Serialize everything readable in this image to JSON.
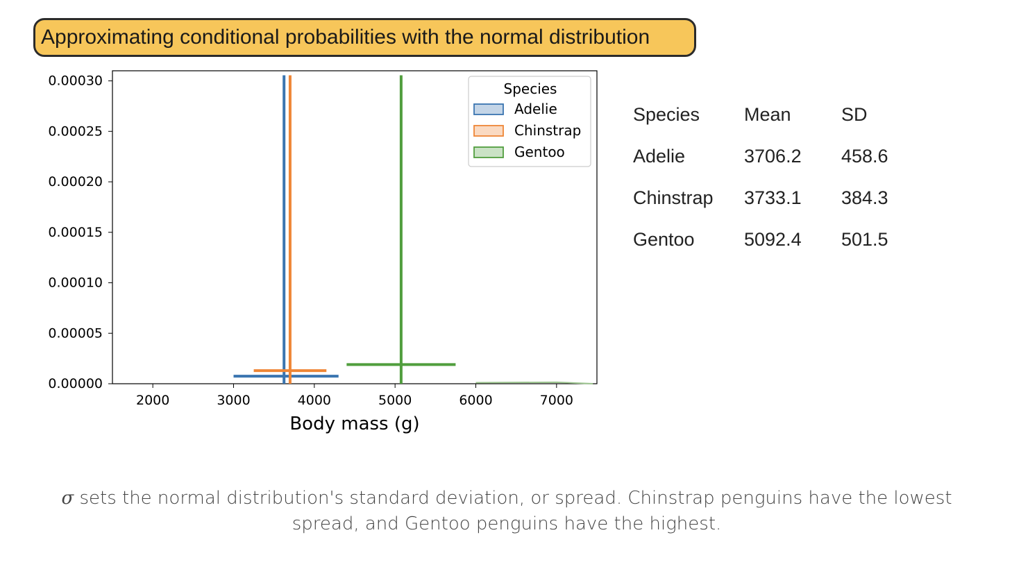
{
  "title": "Approximating conditional probabilities with the normal distribution",
  "chart_data": {
    "type": "histogram",
    "xlabel": "Body mass (g)",
    "ylabel": "",
    "xlim": [
      1500,
      7500
    ],
    "ylim": [
      0,
      0.00031
    ],
    "xticks": [
      2000,
      3000,
      4000,
      5000,
      6000,
      7000
    ],
    "yticks": [
      0,
      5e-05,
      0.0001,
      0.00015,
      0.0002,
      0.00025,
      0.0003
    ],
    "ytick_labels": [
      "0.00000",
      "0.00005",
      "0.00010",
      "0.00015",
      "0.00020",
      "0.00025",
      "0.00030"
    ],
    "legend": {
      "title": "Species",
      "placement": "top-right"
    },
    "grid": false,
    "series": [
      {
        "name": "Adelie",
        "color": "#3a75b0",
        "vline_x": 3625,
        "hline_y": 7.5e-06,
        "hline_x": [
          3000,
          4300
        ]
      },
      {
        "name": "Chinstrap",
        "color": "#ef8636",
        "vline_x": 3700,
        "hline_y": 1.3e-05,
        "hline_x": [
          3250,
          4150
        ]
      },
      {
        "name": "Gentoo",
        "color": "#519e3e",
        "vline_x": 5075,
        "hline_y": 1.9e-05,
        "hline_x": [
          4400,
          5750
        ]
      }
    ],
    "tail": {
      "x": [
        6000,
        7000,
        7450
      ],
      "y": [
        1e-06,
        1.5e-06,
        0.0
      ]
    }
  },
  "table": {
    "headers": [
      "Species",
      "Mean",
      "SD"
    ],
    "rows": [
      [
        "Adelie",
        "3706.2",
        "458.6"
      ],
      [
        "Chinstrap",
        "3733.1",
        "384.3"
      ],
      [
        "Gentoo",
        "5092.4",
        "501.5"
      ]
    ]
  },
  "caption": {
    "symbol": "σ",
    "line1": " sets the normal distribution's standard deviation, or spread. Chinstrap penguins have the lowest",
    "line2": "spread, and Gentoo penguins have the highest."
  }
}
